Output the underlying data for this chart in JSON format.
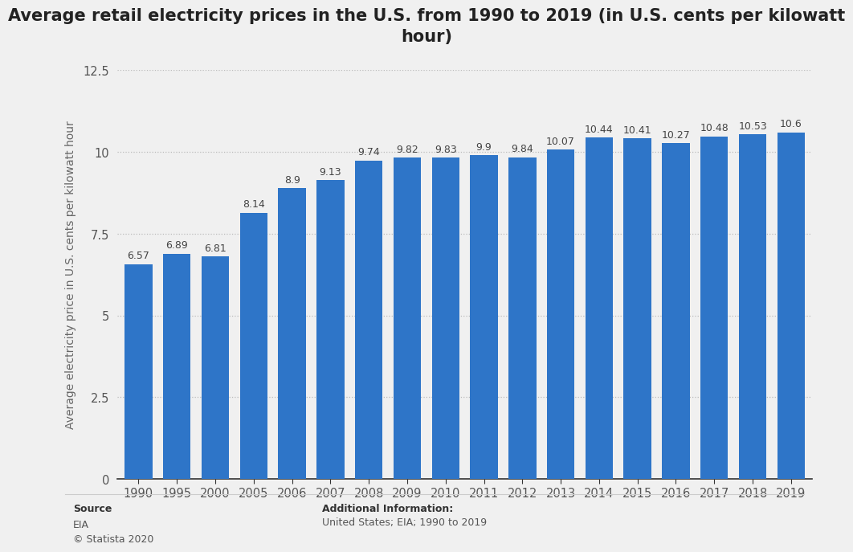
{
  "title": "Average retail electricity prices in the U.S. from 1990 to 2019 (in U.S. cents per kilowatt\nhour)",
  "ylabel": "Average electricity price in U.S. cents per kilowatt hour",
  "categories": [
    "1990",
    "1995",
    "2000",
    "2005",
    "2006",
    "2007",
    "2008",
    "2009",
    "2010",
    "2011",
    "2012",
    "2013",
    "2014",
    "2015",
    "2016",
    "2017",
    "2018",
    "2019"
  ],
  "values": [
    6.57,
    6.89,
    6.81,
    8.14,
    8.9,
    9.13,
    9.74,
    9.82,
    9.83,
    9.9,
    9.84,
    10.07,
    10.44,
    10.41,
    10.27,
    10.48,
    10.53,
    10.6
  ],
  "bar_color": "#2e75c8",
  "ylim": [
    0,
    12.5
  ],
  "yticks": [
    0,
    2.5,
    5,
    7.5,
    10,
    12.5
  ],
  "background_color": "#f0f0f0",
  "plot_background_color": "#f0f0f0",
  "title_fontsize": 15,
  "label_fontsize": 10,
  "tick_fontsize": 10.5,
  "value_fontsize": 9.0,
  "source_label": "Source",
  "source_body": "EIA\n© Statista 2020",
  "additional_label": "Additional Information:",
  "additional_body": "United States; EIA; 1990 to 2019"
}
